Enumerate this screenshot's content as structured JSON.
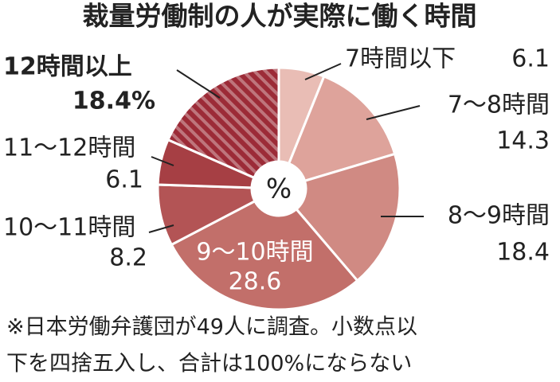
{
  "chart_data": {
    "type": "donut",
    "title": "裁量労働制の人が実際に働く時間",
    "center_label": "%",
    "categories": [
      "7時間以下",
      "7〜8時間",
      "8〜9時間",
      "9〜10時間",
      "10〜11時間",
      "11〜12時間",
      "12時間以上"
    ],
    "values": [
      6.1,
      14.3,
      18.4,
      28.6,
      8.2,
      6.1,
      18.4
    ],
    "value_labels": [
      "6.1",
      "14.3",
      "18.4",
      "28.6",
      "8.2",
      "6.1",
      "18.4%"
    ],
    "colors": [
      "#e9bdb5",
      "#dea39b",
      "#d08a83",
      "#c26f6a",
      "#b35455",
      "#a63f44",
      "#9c2b37"
    ],
    "footnote": [
      "※日本労働弁護団が49人に調査。小数点以",
      "下を四捨五入し、合計は100%にならない"
    ]
  }
}
